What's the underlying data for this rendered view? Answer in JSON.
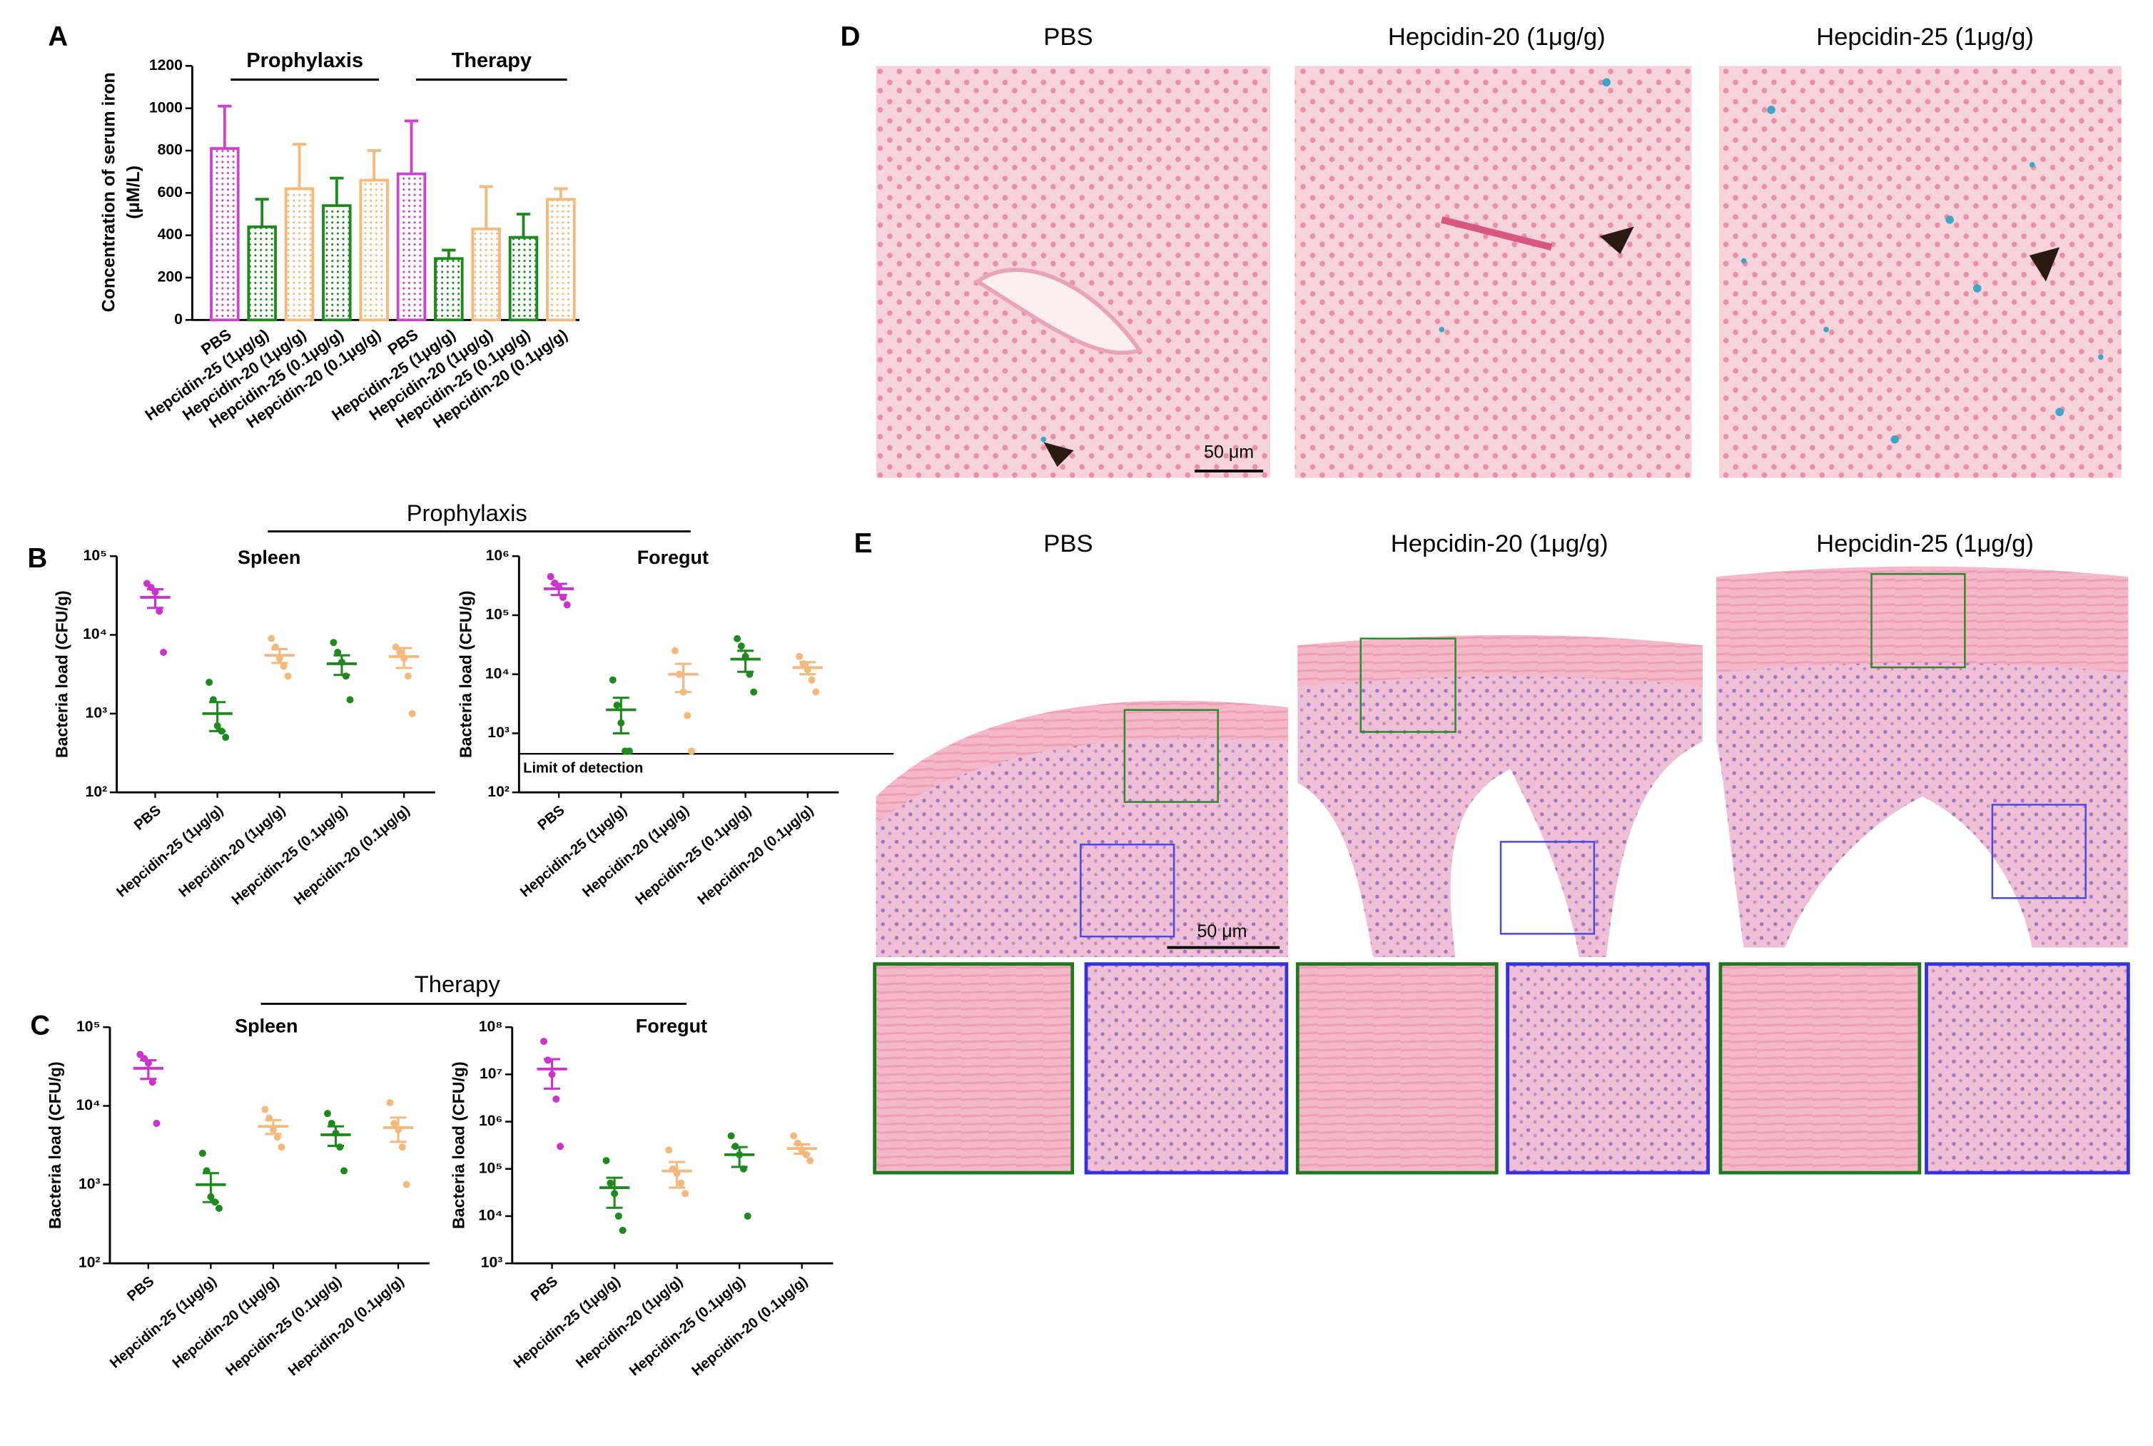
{
  "panel_letters": [
    "A",
    "B",
    "C",
    "D",
    "E"
  ],
  "sections": [
    "Prophylaxis",
    "Therapy"
  ],
  "chart_data": [
    {
      "type": "bar",
      "ylabel": [
        "Concentration of serum iron",
        "(μM/L)"
      ],
      "groups": [
        "Prophylaxis",
        "Therapy"
      ],
      "categories": [
        "PBS",
        "Hepcidin-25 (1μg/g)",
        "Hepcidin-20 (1μg/g)",
        "Hepcidin-25 (0.1μg/g)",
        "Hepcidin-20 (0.1μg/g)",
        "PBS",
        "Hepcidin-25 (1μg/g)",
        "Hepcidin-20 (1μg/g)",
        "Hepcidin-25 (0.1μg/g)",
        "Hepcidin-20 (0.1μg/g)"
      ],
      "values": [
        810,
        440,
        620,
        540,
        660,
        690,
        290,
        430,
        390,
        570
      ],
      "errors": [
        200,
        130,
        210,
        130,
        140,
        250,
        40,
        200,
        110,
        50
      ],
      "colors": [
        "#cc44cc",
        "#1e8a1e",
        "#f6b97c",
        "#1e8a1e",
        "#f6b97c",
        "#cc44cc",
        "#1e8a1e",
        "#f6b97c",
        "#1e8a1e",
        "#f6b97c"
      ],
      "ylim": [
        0,
        1200
      ],
      "yticks": [
        0,
        200,
        400,
        600,
        800,
        1000,
        1200
      ]
    },
    {
      "type": "scatter",
      "title": "Spleen",
      "ylabel": "Bacteria load (CFU/g)",
      "log_scale": true,
      "categories": [
        "PBS",
        "Hepcidin-25 (1μg/g)",
        "Hepcidin-20 (1μg/g)",
        "Hepcidin-25 (0.1μg/g)",
        "Hepcidin-20 (0.1μg/g)"
      ],
      "points": [
        [
          45000,
          40000,
          35000,
          20000,
          6000
        ],
        [
          2500,
          1500,
          700,
          600,
          500
        ],
        [
          9000,
          7000,
          5000,
          4000,
          3000
        ],
        [
          8000,
          6000,
          4500,
          3000,
          1500
        ],
        [
          7000,
          6000,
          5000,
          3000,
          1000
        ]
      ],
      "means": [
        30000,
        1000,
        5500,
        4300,
        5300
      ],
      "errors": [
        8000,
        400,
        1100,
        1200,
        1500
      ],
      "colors": [
        "#cc33cc",
        "#1e8a1e",
        "#f6b97c",
        "#1e8a1e",
        "#f6b97c"
      ],
      "ylim": [
        100,
        100000
      ],
      "yticks": [
        {
          "value": 100,
          "label": "10²"
        },
        {
          "value": 1000,
          "label": "10³"
        },
        {
          "value": 10000,
          "label": "10⁴"
        },
        {
          "value": 100000,
          "label": "10⁵"
        }
      ]
    },
    {
      "type": "scatter",
      "title": "Foregut",
      "ylabel": "Bacteria load (CFU/g)",
      "log_scale": true,
      "limit_of_detection": {
        "value": 450,
        "label": "Limit of detection"
      },
      "categories": [
        "PBS",
        "Hepcidin-25 (1μg/g)",
        "Hepcidin-20 (1μg/g)",
        "Hepcidin-25 (0.1μg/g)",
        "Hepcidin-20 (0.1μg/g)"
      ],
      "points": [
        [
          450000,
          350000,
          300000,
          200000,
          150000
        ],
        [
          8000,
          3000,
          1500,
          500,
          500
        ],
        [
          25000,
          10000,
          5000,
          2000,
          500
        ],
        [
          40000,
          30000,
          20000,
          10000,
          5000
        ],
        [
          20000,
          15000,
          12000,
          8000,
          5000
        ]
      ],
      "means": [
        280000,
        2500,
        10000,
        18000,
        13000
      ],
      "errors": [
        60000,
        1500,
        5000,
        7000,
        3000
      ],
      "colors": [
        "#cc33cc",
        "#1e8a1e",
        "#f6b97c",
        "#1e8a1e",
        "#f6b97c"
      ],
      "ylim": [
        100,
        1000000
      ],
      "yticks": [
        {
          "value": 100,
          "label": "10²"
        },
        {
          "value": 1000,
          "label": "10³"
        },
        {
          "value": 10000,
          "label": "10⁴"
        },
        {
          "value": 100000,
          "label": "10⁵"
        },
        {
          "value": 1000000,
          "label": "10⁶"
        }
      ]
    },
    {
      "type": "scatter",
      "title": "Spleen",
      "ylabel": "Bacteria load (CFU/g)",
      "log_scale": true,
      "categories": [
        "PBS",
        "Hepcidin-25 (1μg/g)",
        "Hepcidin-20 (1μg/g)",
        "Hepcidin-25 (0.1μg/g)",
        "Hepcidin-20 (0.1μg/g)"
      ],
      "points": [
        [
          45000,
          40000,
          35000,
          20000,
          6000
        ],
        [
          2500,
          1500,
          700,
          600,
          500
        ],
        [
          9000,
          7000,
          5000,
          4000,
          3000
        ],
        [
          8000,
          6000,
          4500,
          3000,
          1500
        ],
        [
          11000,
          6000,
          5000,
          3000,
          1000
        ]
      ],
      "means": [
        30000,
        1000,
        5500,
        4300,
        5300
      ],
      "errors": [
        8000,
        400,
        1100,
        1200,
        1800
      ],
      "colors": [
        "#cc33cc",
        "#1e8a1e",
        "#f6b97c",
        "#1e8a1e",
        "#f6b97c"
      ],
      "ylim": [
        100,
        100000
      ],
      "yticks": [
        {
          "value": 100,
          "label": "10²"
        },
        {
          "value": 1000,
          "label": "10³"
        },
        {
          "value": 10000,
          "label": "10⁴"
        },
        {
          "value": 100000,
          "label": "10⁵"
        }
      ]
    },
    {
      "type": "scatter",
      "title": "Foregut",
      "ylabel": "Bacteria load (CFU/g)",
      "log_scale": true,
      "categories": [
        "PBS",
        "Hepcidin-25 (1μg/g)",
        "Hepcidin-20 (1μg/g)",
        "Hepcidin-25 (0.1μg/g)",
        "Hepcidin-20 (0.1μg/g)"
      ],
      "points": [
        [
          50000000,
          20000000,
          10000000,
          3000000,
          300000
        ],
        [
          150000,
          50000,
          30000,
          10000,
          5000
        ],
        [
          250000,
          100000,
          80000,
          50000,
          30000
        ],
        [
          500000,
          300000,
          200000,
          100000,
          10000
        ],
        [
          500000,
          350000,
          250000,
          200000,
          150000
        ]
      ],
      "means": [
        13000000,
        40000,
        90000,
        200000,
        270000
      ],
      "errors": [
        8000000,
        25000,
        50000,
        90000,
        60000
      ],
      "colors": [
        "#cc33cc",
        "#1e8a1e",
        "#f6b97c",
        "#1e8a1e",
        "#f6b97c"
      ],
      "ylim": [
        1000,
        100000000
      ],
      "yticks": [
        {
          "value": 1000,
          "label": "10³"
        },
        {
          "value": 10000,
          "label": "10⁴"
        },
        {
          "value": 100000,
          "label": "10⁵"
        },
        {
          "value": 1000000,
          "label": "10⁶"
        },
        {
          "value": 10000000,
          "label": "10⁷"
        },
        {
          "value": 100000000,
          "label": "10⁸"
        }
      ]
    }
  ],
  "panel_D": {
    "titles": [
      "PBS",
      "Hepcidin-20 (1μg/g)",
      "Hepcidin-25 (1μg/g)"
    ],
    "scale_bar": "50 μm"
  },
  "panel_E": {
    "titles": [
      "PBS",
      "Hepcidin-20 (1μg/g)",
      "Hepcidin-25 (1μg/g)"
    ],
    "scale_bar": "50 μm"
  }
}
